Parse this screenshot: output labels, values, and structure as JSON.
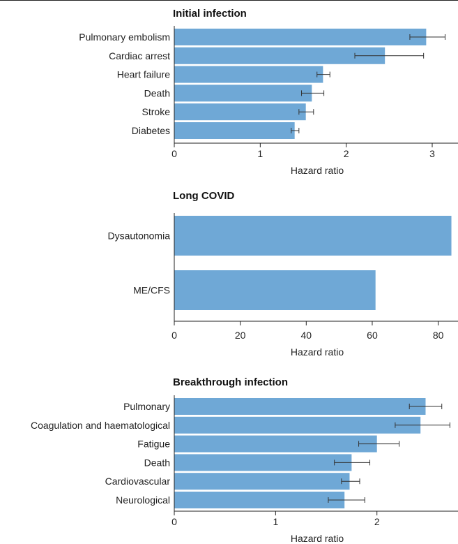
{
  "colors": {
    "bar": "#6fa8d6",
    "axis": "#222222",
    "error_bar": "#333333"
  },
  "chart_data": [
    {
      "type": "bar",
      "orientation": "horizontal",
      "title": "Initial infection",
      "xlabel": "Hazard ratio",
      "xlim": [
        0,
        3.3
      ],
      "xticks": [
        "0",
        "1",
        "2",
        "3"
      ],
      "categories": [
        "Pulmonary embolism",
        "Cardiac arrest",
        "Heart failure",
        "Death",
        "Stroke",
        "Diabetes"
      ],
      "values": [
        2.93,
        2.45,
        1.73,
        1.6,
        1.53,
        1.4
      ],
      "error_low": [
        2.74,
        2.1,
        1.66,
        1.48,
        1.45,
        1.36
      ],
      "error_high": [
        3.15,
        2.9,
        1.81,
        1.74,
        1.62,
        1.45
      ]
    },
    {
      "type": "bar",
      "orientation": "horizontal",
      "title": "Long COVID",
      "xlabel": "Hazard ratio",
      "xlim": [
        0,
        86
      ],
      "xticks": [
        "0",
        "20",
        "40",
        "60",
        "80"
      ],
      "categories": [
        "Dysautonomia",
        "ME/CFS"
      ],
      "values": [
        84,
        61
      ]
    },
    {
      "type": "bar",
      "orientation": "horizontal",
      "title": "Breakthrough infection",
      "xlabel": "Hazard ratio",
      "xlim": [
        0,
        2.8
      ],
      "xticks": [
        "0",
        "1",
        "2"
      ],
      "categories": [
        "Pulmonary",
        "Coagulation and haematological",
        "Fatigue",
        "Death",
        "Cardiovascular",
        "Neurological"
      ],
      "values": [
        2.48,
        2.43,
        2.0,
        1.75,
        1.73,
        1.68
      ],
      "error_low": [
        2.32,
        2.18,
        1.82,
        1.58,
        1.65,
        1.52
      ],
      "error_high": [
        2.64,
        2.72,
        2.22,
        1.93,
        1.83,
        1.88
      ]
    }
  ]
}
